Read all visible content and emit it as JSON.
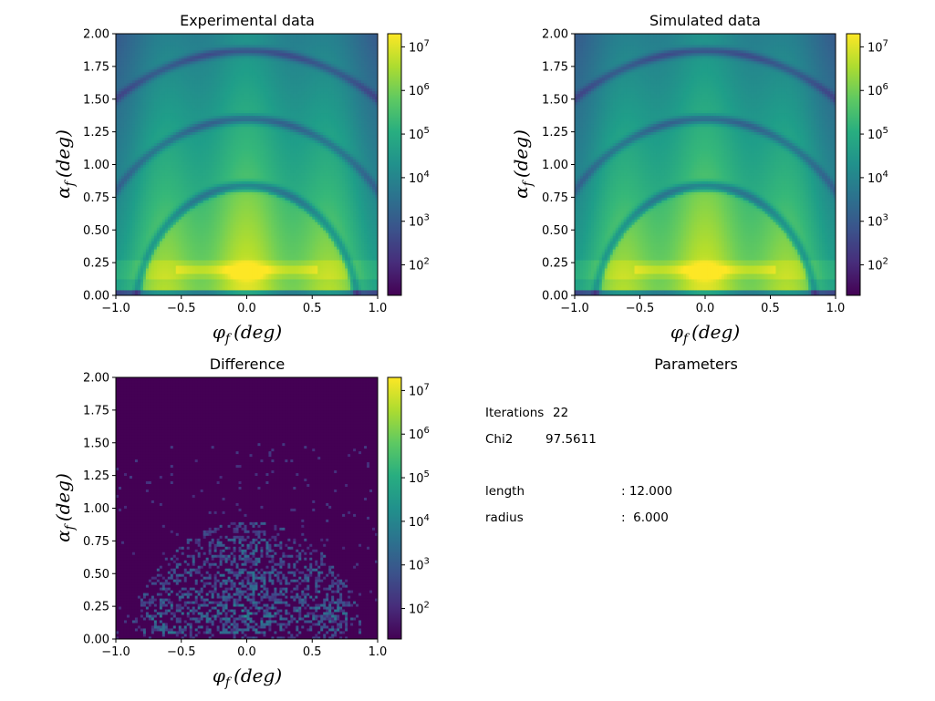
{
  "chart_data": [
    {
      "type": "heatmap",
      "title": "Experimental data",
      "xlabel_base": "φ",
      "xlabel_sub": "f",
      "xlabel_unit": "(deg)",
      "ylabel_base": "α",
      "ylabel_sub": "f",
      "ylabel_unit": "(deg)",
      "xlim": [
        -1.0,
        1.0
      ],
      "ylim": [
        0.0,
        2.0
      ],
      "x_ticks": [
        "−1.0",
        "−0.5",
        "0.0",
        "0.5",
        "1.0"
      ],
      "y_ticks": [
        "0.00",
        "0.25",
        "0.50",
        "0.75",
        "1.00",
        "1.25",
        "1.50",
        "1.75",
        "2.00"
      ],
      "colormap": "viridis",
      "color_scale": "log",
      "color_range": [
        20,
        20000000
      ],
      "colorbar_ticks": [
        {
          "base": "10",
          "exp": "2",
          "value": 100
        },
        {
          "base": "10",
          "exp": "3",
          "value": 1000
        },
        {
          "base": "10",
          "exp": "4",
          "value": 10000
        },
        {
          "base": "10",
          "exp": "5",
          "value": 100000
        },
        {
          "base": "10",
          "exp": "6",
          "value": 1000000
        },
        {
          "base": "10",
          "exp": "7",
          "value": 10000000
        }
      ],
      "pattern": "form-factor"
    },
    {
      "type": "heatmap",
      "title": "Simulated data",
      "xlabel_base": "φ",
      "xlabel_sub": "f",
      "xlabel_unit": "(deg)",
      "ylabel_base": "α",
      "ylabel_sub": "f",
      "ylabel_unit": "(deg)",
      "xlim": [
        -1.0,
        1.0
      ],
      "ylim": [
        0.0,
        2.0
      ],
      "x_ticks": [
        "−1.0",
        "−0.5",
        "0.0",
        "0.5",
        "1.0"
      ],
      "y_ticks": [
        "0.00",
        "0.25",
        "0.50",
        "0.75",
        "1.00",
        "1.25",
        "1.50",
        "1.75",
        "2.00"
      ],
      "colormap": "viridis",
      "color_scale": "log",
      "color_range": [
        20,
        20000000
      ],
      "colorbar_ticks": [
        {
          "base": "10",
          "exp": "2",
          "value": 100
        },
        {
          "base": "10",
          "exp": "3",
          "value": 1000
        },
        {
          "base": "10",
          "exp": "4",
          "value": 10000
        },
        {
          "base": "10",
          "exp": "5",
          "value": 100000
        },
        {
          "base": "10",
          "exp": "6",
          "value": 1000000
        },
        {
          "base": "10",
          "exp": "7",
          "value": 10000000
        }
      ],
      "pattern": "form-factor"
    },
    {
      "type": "heatmap",
      "title": "Difference",
      "xlabel_base": "φ",
      "xlabel_sub": "f",
      "xlabel_unit": "(deg)",
      "ylabel_base": "α",
      "ylabel_sub": "f",
      "ylabel_unit": "(deg)",
      "xlim": [
        -1.0,
        1.0
      ],
      "ylim": [
        0.0,
        2.0
      ],
      "x_ticks": [
        "−1.0",
        "−0.5",
        "0.0",
        "0.5",
        "1.0"
      ],
      "y_ticks": [
        "0.00",
        "0.25",
        "0.50",
        "0.75",
        "1.00",
        "1.25",
        "1.50",
        "1.75",
        "2.00"
      ],
      "colormap": "viridis",
      "color_scale": "log",
      "color_range": [
        20,
        20000000
      ],
      "colorbar_ticks": [
        {
          "base": "10",
          "exp": "2",
          "value": 100
        },
        {
          "base": "10",
          "exp": "3",
          "value": 1000
        },
        {
          "base": "10",
          "exp": "4",
          "value": 10000
        },
        {
          "base": "10",
          "exp": "5",
          "value": 100000
        },
        {
          "base": "10",
          "exp": "6",
          "value": 1000000
        },
        {
          "base": "10",
          "exp": "7",
          "value": 10000000
        }
      ],
      "pattern": "noise"
    }
  ],
  "parameters": {
    "title": "Parameters",
    "iterations_label": "Iterations",
    "iterations_value": "22",
    "chi2_label": "Chi2",
    "chi2_value": "97.5611",
    "params": [
      {
        "name": "length",
        "value": ": 12.000"
      },
      {
        "name": "radius",
        "value": ":  6.000"
      }
    ]
  }
}
